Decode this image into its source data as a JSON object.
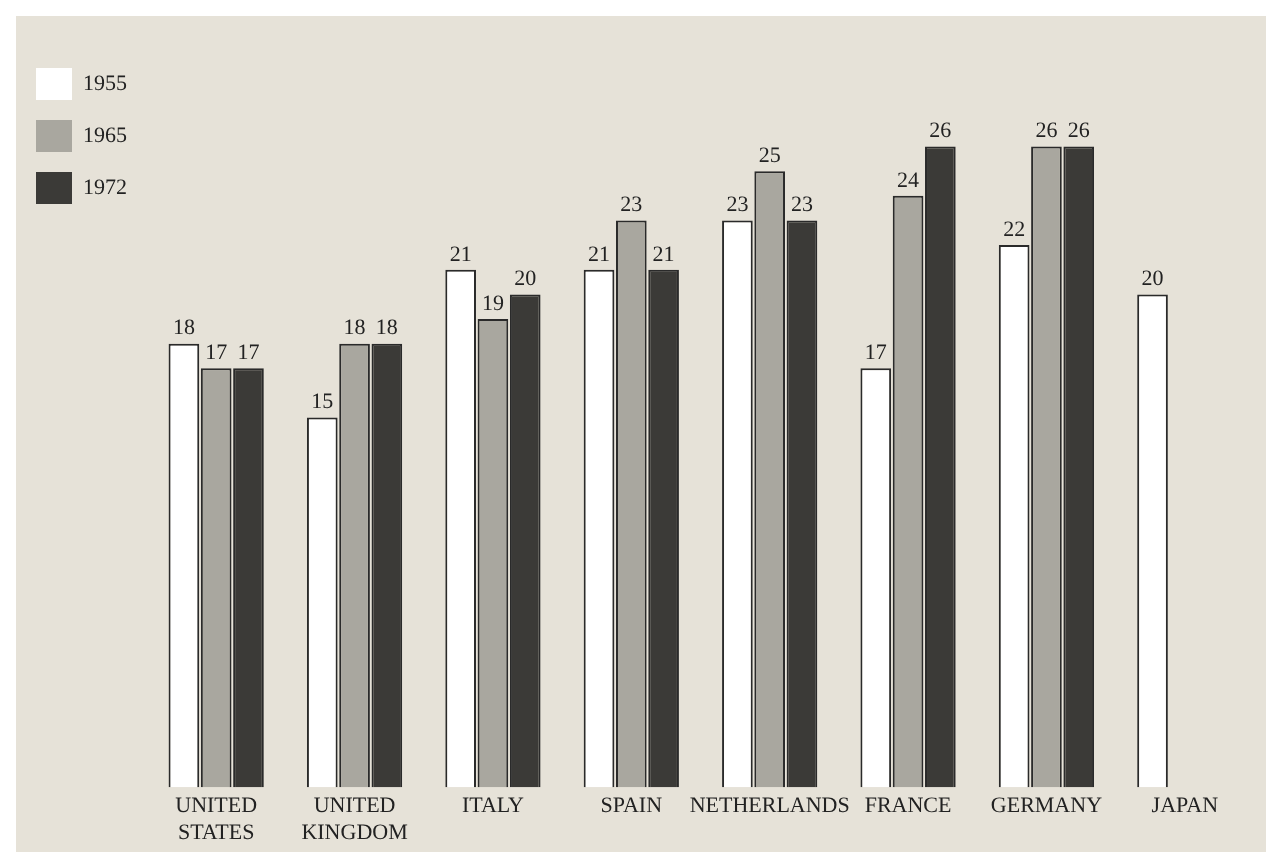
{
  "chart_data": {
    "type": "bar",
    "categories": [
      "UNITED STATES",
      "UNITED KINGDOM",
      "ITALY",
      "SPAIN",
      "NETHERLANDS",
      "FRANCE",
      "GERMANY",
      "JAPAN"
    ],
    "series": [
      {
        "name": "1955",
        "color": "#ffffff",
        "values": [
          18,
          15,
          21,
          21,
          23,
          17,
          22,
          20
        ]
      },
      {
        "name": "1965",
        "color": "#a9a79f",
        "values": [
          17,
          18,
          19,
          23,
          25,
          24,
          26,
          null
        ]
      },
      {
        "name": "1972",
        "color": "#3b3a37",
        "values": [
          17,
          18,
          20,
          21,
          23,
          26,
          26,
          null
        ]
      }
    ],
    "data_labels": true,
    "legend": "top left",
    "grid": false
  }
}
